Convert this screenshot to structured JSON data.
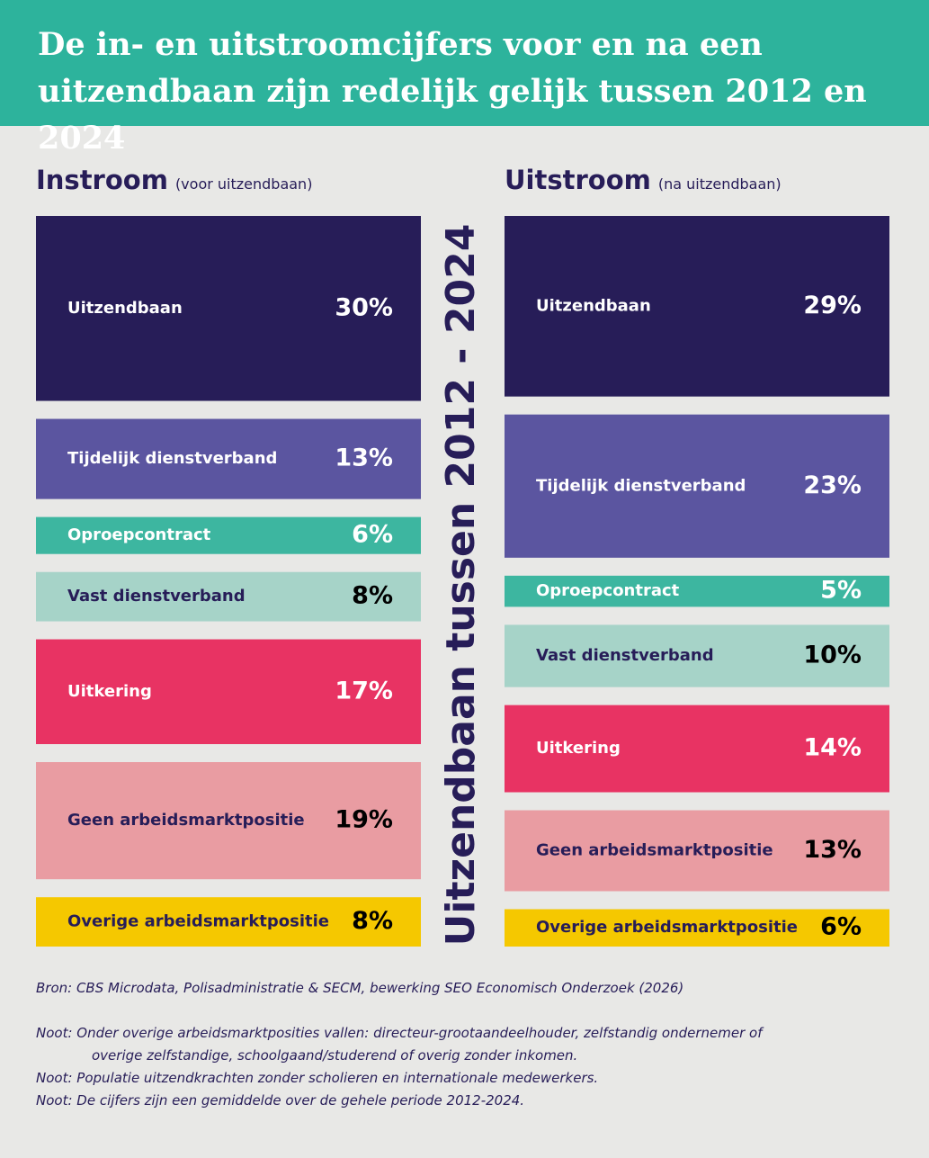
{
  "header": {
    "title": "De in- en uitstroomcijfers voor en na een uitzendbaan zijn redelijk gelijk tussen 2012 en 2024"
  },
  "side_label": "Uitzendbaan tussen 2012 - 2024",
  "chart_data": [
    {
      "type": "block",
      "title": "Instroom",
      "subtitle": "(voor uitzendbaan)",
      "categories": [
        "Uitzendbaan",
        "Tijdelijk dienstverband",
        "Oproepcontract",
        "Vast dienstverband",
        "Uitkering",
        "Geen arbeidsmarktpositie",
        "Overige arbeidsmarktpositie"
      ],
      "values": [
        30,
        13,
        6,
        8,
        17,
        19,
        8
      ],
      "value_labels": [
        "30%",
        "13%",
        "6%",
        "8%",
        "17%",
        "19%",
        "8%"
      ],
      "colors": [
        "#271d58",
        "#5b55a0",
        "#3db6a0",
        "#a6d3c8",
        "#e83363",
        "#e99ca2",
        "#f5c800"
      ]
    },
    {
      "type": "block",
      "title": "Uitstroom",
      "subtitle": "(na uitzendbaan)",
      "categories": [
        "Uitzendbaan",
        "Tijdelijk dienstverband",
        "Oproepcontract",
        "Vast dienstverband",
        "Uitkering",
        "Geen arbeidsmarktpositie",
        "Overige arbeidsmarktpositie"
      ],
      "values": [
        29,
        23,
        5,
        10,
        14,
        13,
        6
      ],
      "value_labels": [
        "29%",
        "23%",
        "5%",
        "10%",
        "14%",
        "13%",
        "6%"
      ],
      "colors": [
        "#271d58",
        "#5b55a0",
        "#3db6a0",
        "#a6d3c8",
        "#e83363",
        "#e99ca2",
        "#f5c800"
      ]
    }
  ],
  "source": "Bron: CBS Microdata, Polisadministratie & SECM, bewerking SEO Economisch Onderzoek (2026)",
  "notes": [
    "Noot: Onder overige arbeidsmarktposities vallen: directeur-grootaandeelhouder, zelfstandig ondernemer of overige zelfstandige, schoolgaand/studerend of overig zonder inkomen.",
    "Noot: Populatie uitzendkrachten zonder scholieren en internationale medewerkers.",
    "Noot: De cijfers zijn een gemiddelde over de gehele periode 2012-2024."
  ]
}
